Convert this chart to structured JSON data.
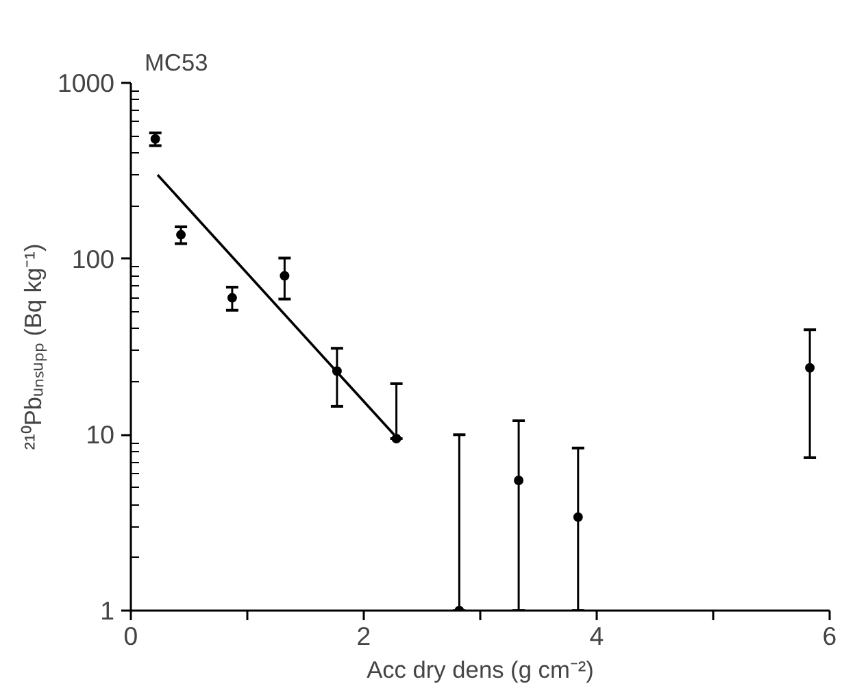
{
  "chart_data": {
    "type": "scatter",
    "title": "MC53",
    "xlabel": "Acc dry dens (g cm⁻²)",
    "ylabel": "²¹⁰Pbᵤₙₛᵤₚₚ (Bq kg⁻¹)",
    "log": "y",
    "xlim": [
      0,
      6
    ],
    "ylim": [
      1,
      1000
    ],
    "xticks": [
      0,
      {
        "value": 1,
        "label": null
      },
      2,
      {
        "value": 3,
        "label": null
      },
      4,
      {
        "value": 5,
        "label": null
      },
      6
    ],
    "yticks": [
      1,
      10,
      100,
      1000
    ],
    "grid": false,
    "series": [
      {
        "color": "#000000",
        "marker": "circle",
        "x": [
          0.21,
          0.43,
          0.87,
          1.32,
          1.77,
          2.28
        ],
        "values": [
          480,
          137,
          60,
          80,
          23,
          9.5
        ],
        "errors": [
          40,
          15,
          9,
          21,
          [
            14.5,
            31
          ],
          [
            9.5,
            19.5
          ]
        ]
      },
      {
        "color": "#000000",
        "marker": "circle",
        "x": [
          2.82,
          3.33,
          3.84,
          5.83
        ],
        "values": [
          1,
          5.5,
          3.4,
          24
        ],
        "errors": [
          [
            1,
            10
          ],
          [
            1,
            12
          ],
          [
            1,
            8.4
          ],
          [
            7.4,
            39.5
          ]
        ]
      },
      {
        "type": "line",
        "color": "#000000",
        "x": [
          0.23,
          2.26
        ],
        "values": [
          300,
          10
        ],
        "line_style": "solid"
      }
    ]
  }
}
